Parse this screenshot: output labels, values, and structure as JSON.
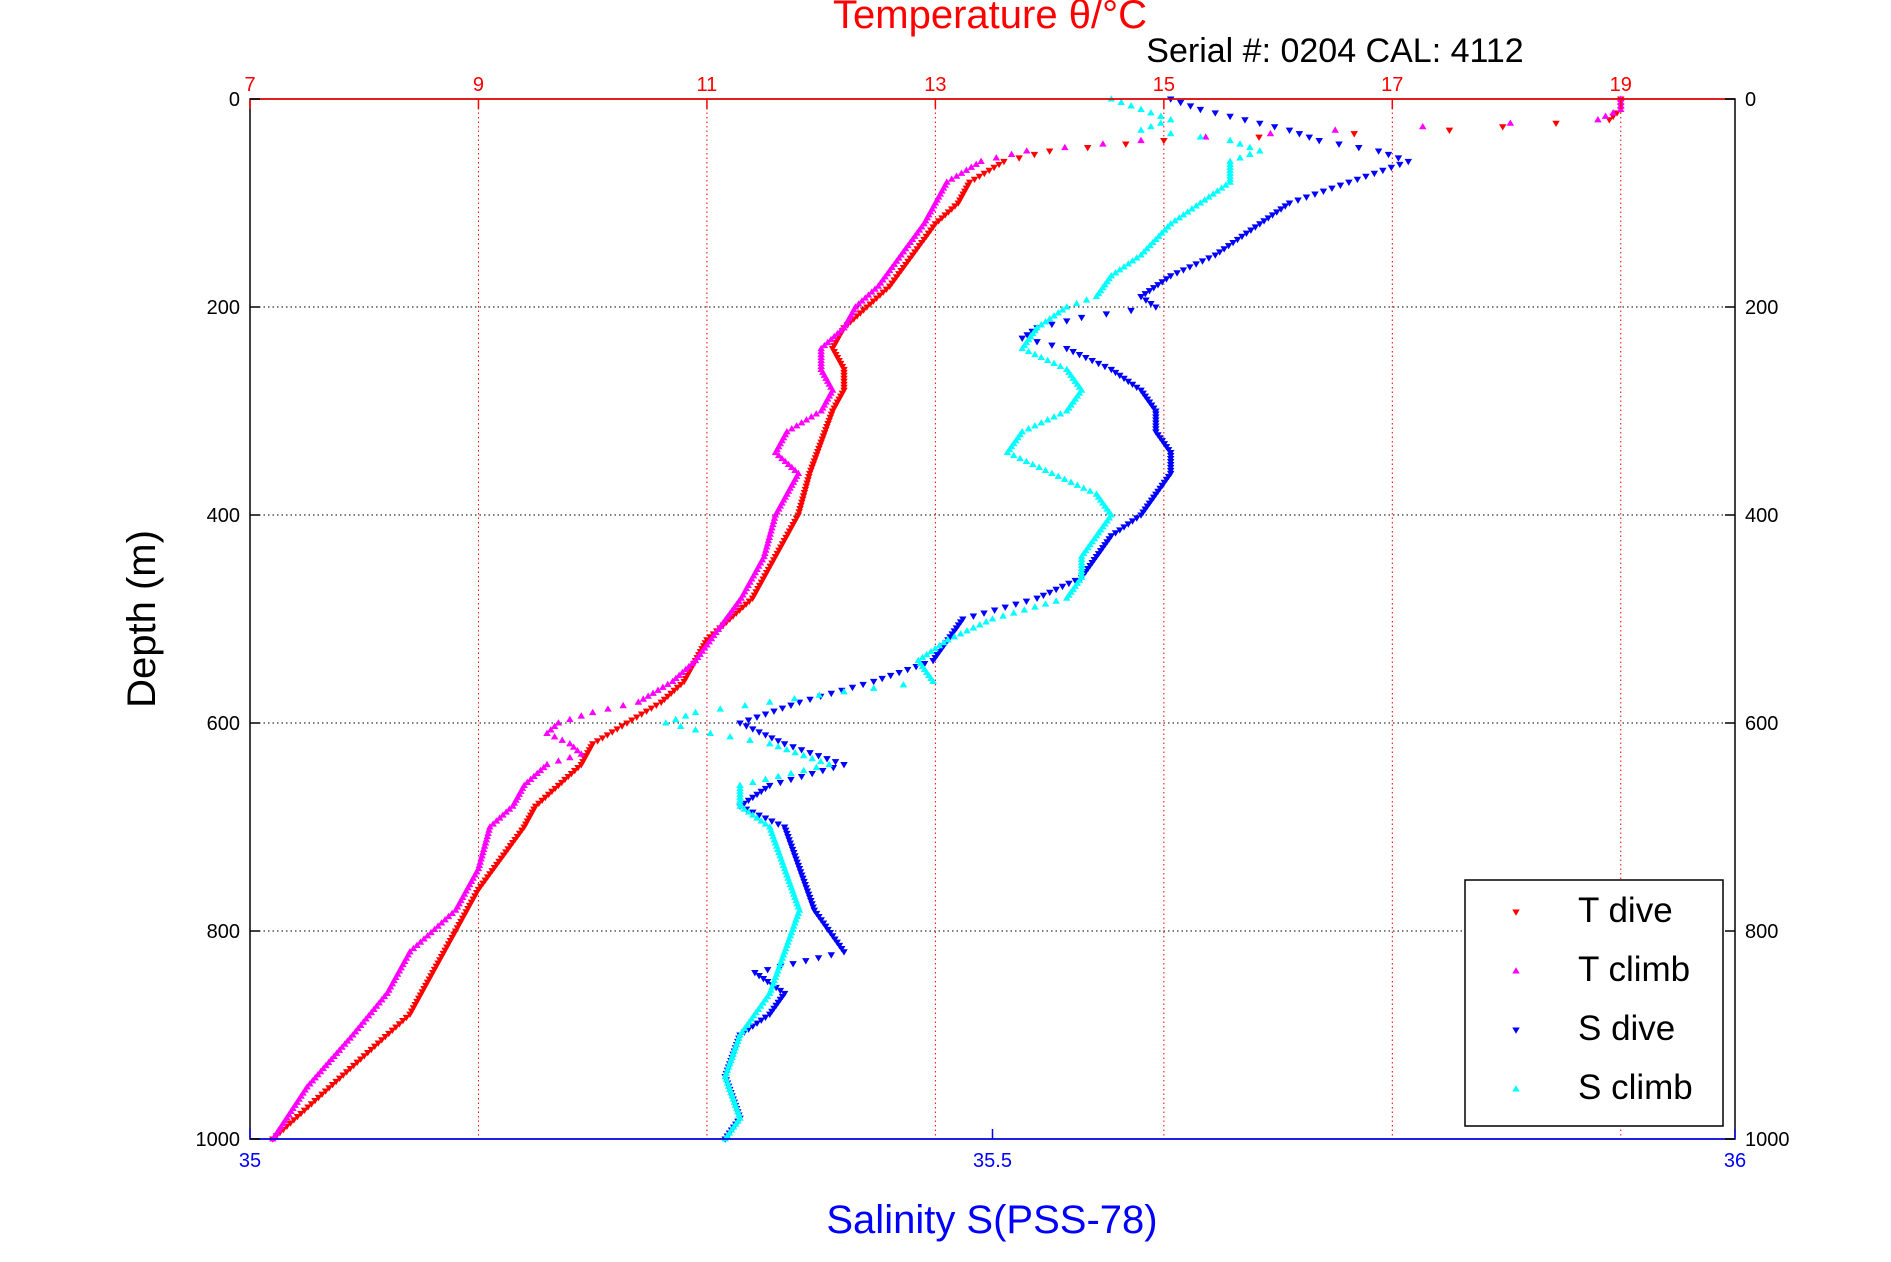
{
  "chart_data": {
    "type": "scatter",
    "title": "Temperature θ/°C",
    "subtitle": "Serial #: 0204  CAL: 4112",
    "xlabel": "Salinity S(PSS-78)",
    "ylabel": "Depth (m)",
    "x_top_label": "Temperature θ/°C",
    "x_top_lim": [
      7,
      20
    ],
    "x_top_ticks": [
      "7",
      "9",
      "11",
      "13",
      "15",
      "17",
      "19"
    ],
    "x_bottom_lim": [
      35,
      36
    ],
    "x_bottom_ticks": [
      "35",
      "35.5",
      "36"
    ],
    "ylim": [
      0,
      1000
    ],
    "y_reversed": true,
    "y_ticks": [
      "0",
      "200",
      "400",
      "600",
      "800",
      "1000"
    ],
    "grid": true,
    "legend_position": "bottom-right",
    "colors": {
      "T dive": "#ff0000",
      "T climb": "#ff00ff",
      "S dive": "#0000ff",
      "S climb": "#00ffff"
    },
    "series": [
      {
        "name": "T dive",
        "axis": "temperature",
        "marker": "triangle-down",
        "color": "#ff0000",
        "depth": [
          0,
          10,
          20,
          30,
          40,
          50,
          60,
          80,
          100,
          120,
          150,
          180,
          200,
          220,
          240,
          260,
          280,
          300,
          330,
          360,
          400,
          440,
          480,
          500,
          520,
          540,
          560,
          580,
          600,
          620,
          640,
          660,
          680,
          700,
          730,
          760,
          800,
          840,
          880,
          920,
          960,
          1000
        ],
        "values": [
          19.0,
          19.0,
          18.9,
          17.5,
          15.0,
          14.0,
          13.6,
          13.3,
          13.2,
          13.0,
          12.8,
          12.6,
          12.4,
          12.2,
          12.1,
          12.2,
          12.2,
          12.1,
          12.0,
          11.9,
          11.8,
          11.6,
          11.4,
          11.2,
          11.0,
          10.9,
          10.8,
          10.6,
          10.3,
          10.0,
          9.9,
          9.7,
          9.5,
          9.4,
          9.2,
          9.0,
          8.8,
          8.6,
          8.4,
          8.0,
          7.6,
          7.2
        ]
      },
      {
        "name": "T climb",
        "axis": "temperature",
        "marker": "triangle-up",
        "color": "#ff00ff",
        "depth": [
          0,
          10,
          20,
          30,
          40,
          50,
          60,
          80,
          100,
          120,
          150,
          180,
          200,
          220,
          240,
          260,
          280,
          300,
          320,
          340,
          360,
          380,
          400,
          440,
          480,
          510,
          540,
          560,
          580,
          590,
          600,
          610,
          620,
          630,
          640,
          660,
          680,
          700,
          740,
          780,
          820,
          860,
          900,
          950,
          1000
        ],
        "values": [
          19.0,
          19.0,
          18.8,
          16.5,
          14.8,
          13.8,
          13.4,
          13.1,
          13.0,
          12.9,
          12.7,
          12.5,
          12.3,
          12.2,
          12.0,
          12.0,
          12.1,
          12.0,
          11.7,
          11.6,
          11.8,
          11.7,
          11.6,
          11.5,
          11.3,
          11.1,
          10.9,
          10.7,
          10.4,
          10.0,
          9.7,
          9.6,
          9.8,
          9.9,
          9.6,
          9.4,
          9.3,
          9.1,
          9.0,
          8.8,
          8.4,
          8.2,
          7.9,
          7.5,
          7.2
        ]
      },
      {
        "name": "S dive",
        "axis": "salinity",
        "marker": "triangle-down",
        "color": "#0000ff",
        "depth": [
          0,
          10,
          20,
          30,
          40,
          50,
          60,
          80,
          100,
          120,
          150,
          170,
          190,
          200,
          210,
          220,
          230,
          240,
          260,
          280,
          300,
          320,
          340,
          360,
          380,
          400,
          420,
          440,
          460,
          480,
          500,
          520,
          540,
          560,
          580,
          600,
          620,
          640,
          660,
          680,
          700,
          740,
          780,
          820,
          840,
          860,
          880,
          900,
          940,
          980,
          1000
        ],
        "values": [
          35.62,
          35.64,
          35.67,
          35.7,
          35.72,
          35.76,
          35.78,
          35.74,
          35.7,
          35.68,
          35.65,
          35.62,
          35.6,
          35.61,
          35.56,
          35.53,
          35.52,
          35.55,
          35.58,
          35.6,
          35.61,
          35.61,
          35.62,
          35.62,
          35.61,
          35.6,
          35.58,
          35.57,
          35.56,
          35.53,
          35.48,
          35.47,
          35.46,
          35.42,
          35.37,
          35.33,
          35.36,
          35.4,
          35.35,
          35.33,
          35.36,
          35.37,
          35.38,
          35.4,
          35.34,
          35.36,
          35.35,
          35.33,
          35.32,
          35.33,
          35.32
        ]
      },
      {
        "name": "S climb",
        "axis": "salinity",
        "marker": "triangle-up",
        "color": "#00ffff",
        "depth": [
          0,
          10,
          20,
          30,
          40,
          50,
          60,
          80,
          100,
          120,
          150,
          170,
          190,
          200,
          220,
          240,
          260,
          280,
          300,
          320,
          340,
          360,
          380,
          400,
          420,
          440,
          460,
          480,
          500,
          520,
          540,
          560,
          570,
          580,
          590,
          600,
          610,
          620,
          640,
          660,
          680,
          700,
          740,
          780,
          820,
          860,
          900,
          940,
          980,
          1000
        ],
        "values": [
          35.58,
          35.6,
          35.62,
          35.6,
          35.66,
          35.68,
          35.66,
          35.66,
          35.64,
          35.62,
          35.6,
          35.58,
          35.57,
          35.55,
          35.53,
          35.52,
          35.55,
          35.56,
          35.55,
          35.52,
          35.51,
          35.54,
          35.57,
          35.58,
          35.57,
          35.56,
          35.56,
          35.55,
          35.5,
          35.47,
          35.45,
          35.46,
          35.4,
          35.35,
          35.3,
          35.28,
          35.31,
          35.35,
          35.39,
          35.33,
          35.33,
          35.35,
          35.36,
          35.37,
          35.36,
          35.35,
          35.33,
          35.32,
          35.33,
          35.32
        ]
      }
    ]
  }
}
